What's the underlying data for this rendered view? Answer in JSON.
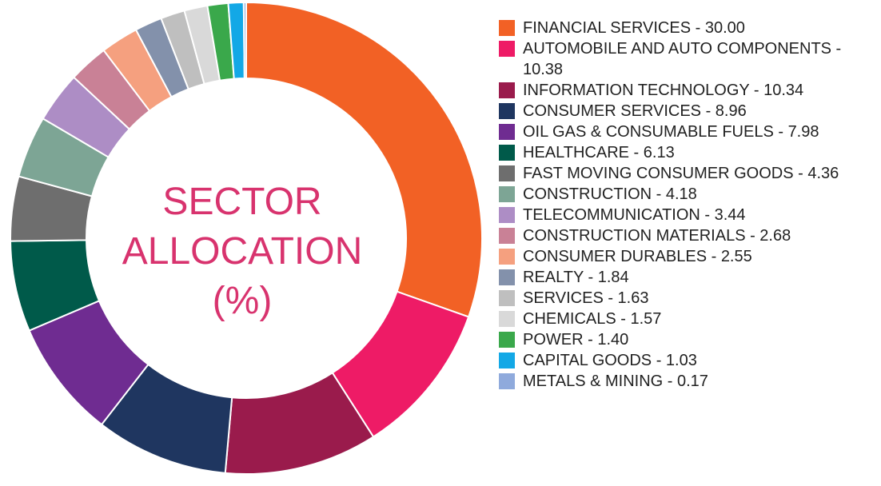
{
  "center_title": {
    "line1": "SECTOR",
    "line2": "ALLOCATION",
    "line3": "(%)"
  },
  "chart_data": {
    "type": "pie",
    "title": "SECTOR ALLOCATION (%)",
    "slices": [
      {
        "label": "FINANCIAL SERVICES - 30.00",
        "value": 30.0,
        "color": "#f26125"
      },
      {
        "label": "AUTOMOBILE AND AUTO COMPONENTS - 10.38",
        "value": 10.38,
        "color": "#ee1b66"
      },
      {
        "label": "INFORMATION TECHNOLOGY - 10.34",
        "value": 10.34,
        "color": "#9a1b4c"
      },
      {
        "label": "CONSUMER SERVICES - 8.96",
        "value": 8.96,
        "color": "#1f3660"
      },
      {
        "label": "OIL GAS & CONSUMABLE FUELS - 7.98",
        "value": 7.98,
        "color": "#6f2c91"
      },
      {
        "label": "HEALTHCARE - 6.13",
        "value": 6.13,
        "color": "#005a4a"
      },
      {
        "label": "FAST MOVING CONSUMER GOODS - 4.36",
        "value": 4.36,
        "color": "#6e6e6e"
      },
      {
        "label": "CONSTRUCTION - 4.18",
        "value": 4.18,
        "color": "#7da595"
      },
      {
        "label": "TELECOMMUNICATION - 3.44",
        "value": 3.44,
        "color": "#ad8dc5"
      },
      {
        "label": "CONSTRUCTION MATERIALS - 2.68",
        "value": 2.68,
        "color": "#c98196"
      },
      {
        "label": "CONSUMER DURABLES - 2.55",
        "value": 2.55,
        "color": "#f5a07f"
      },
      {
        "label": "REALTY - 1.84",
        "value": 1.84,
        "color": "#8391ab"
      },
      {
        "label": "SERVICES - 1.63",
        "value": 1.63,
        "color": "#bfbfbf"
      },
      {
        "label": "CHEMICALS - 1.57",
        "value": 1.57,
        "color": "#d9d9d9"
      },
      {
        "label": "POWER  - 1.40",
        "value": 1.4,
        "color": "#3aa84b"
      },
      {
        "label": "CAPITAL GOODS  - 1.03",
        "value": 1.03,
        "color": "#13a8e6"
      },
      {
        "label": "METALS & MINING  - 0.17",
        "value": 0.17,
        "color": "#8faadc"
      }
    ],
    "legend_position": "right"
  }
}
